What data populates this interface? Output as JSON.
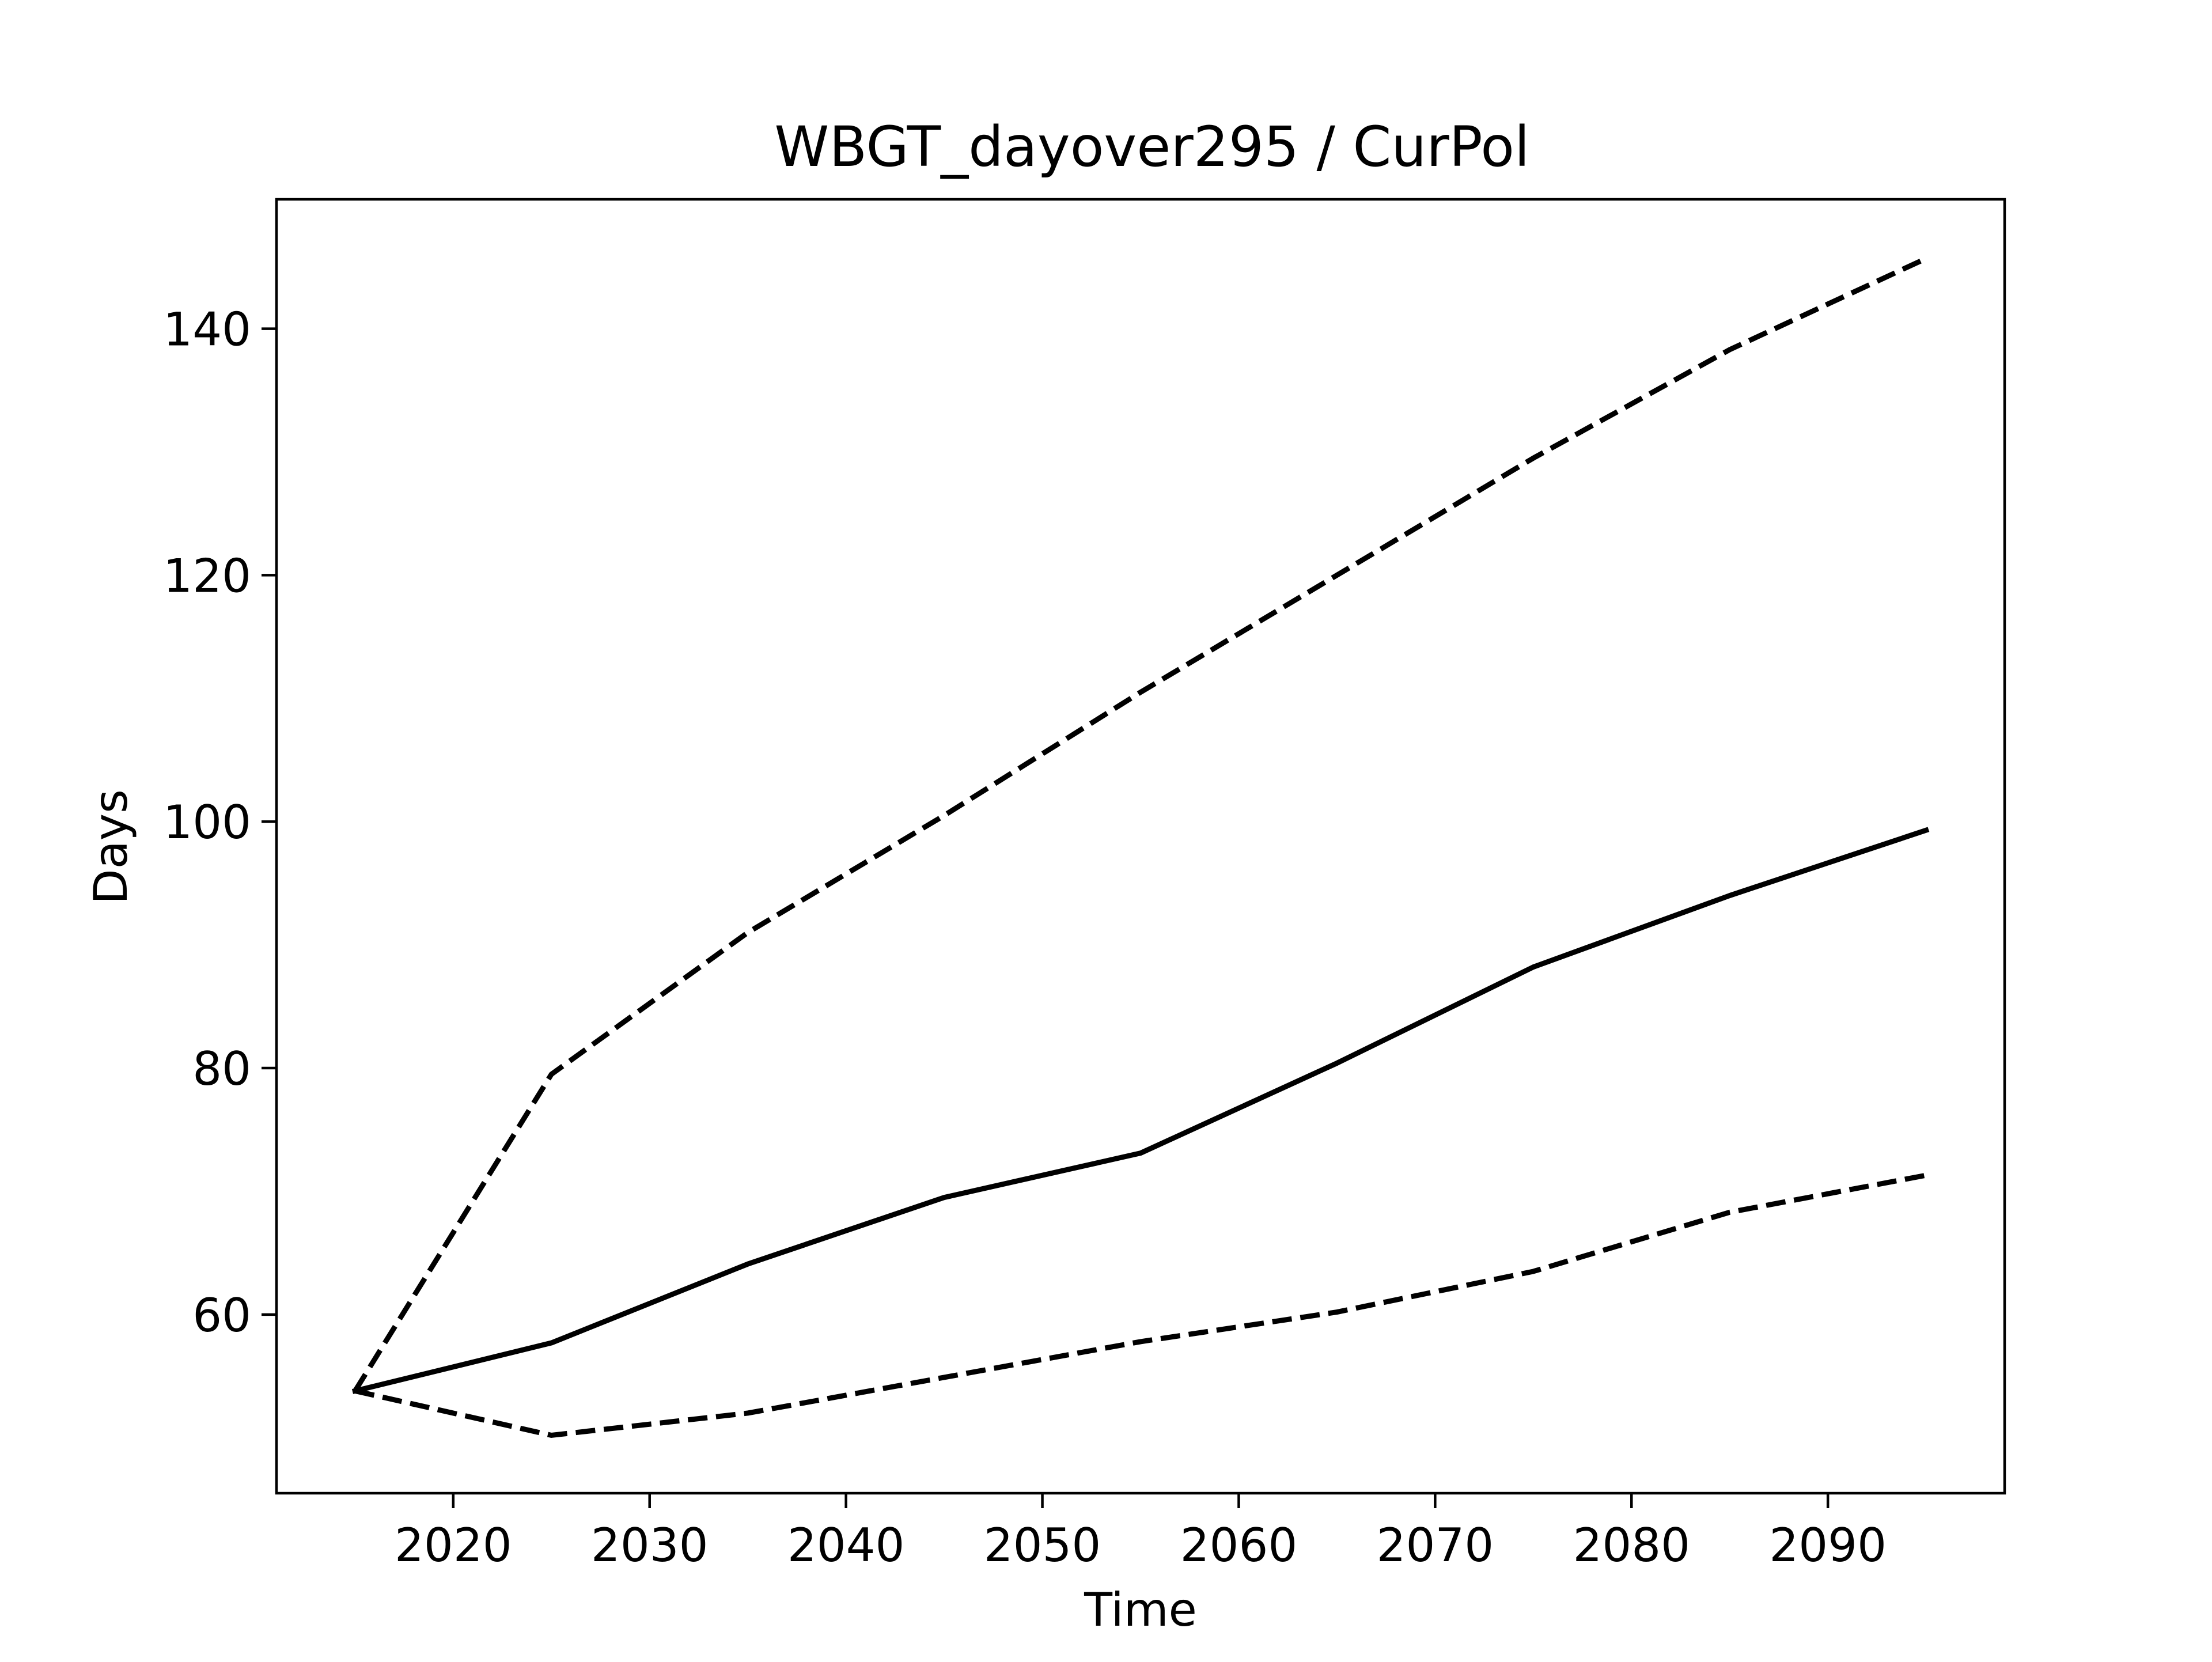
{
  "chart_data": {
    "type": "line",
    "title": "WBGT_dayover295 / CurPol",
    "xlabel": "Time",
    "ylabel": "Days",
    "xlim": [
      2011,
      2099
    ],
    "ylim": [
      45.5,
      150.5
    ],
    "x_ticks": [
      2020,
      2030,
      2040,
      2050,
      2060,
      2070,
      2080,
      2090
    ],
    "y_ticks": [
      60,
      80,
      100,
      120,
      140
    ],
    "x_tick_labels": [
      "2020",
      "2030",
      "2040",
      "2050",
      "2060",
      "2070",
      "2080",
      "2090"
    ],
    "y_tick_labels": [
      "60",
      "80",
      "100",
      "120",
      "140"
    ],
    "grid": false,
    "legend": "none",
    "x": [
      2015,
      2025,
      2035,
      2045,
      2055,
      2065,
      2075,
      2085,
      2095
    ],
    "series": [
      {
        "style": "solid",
        "color": "#000000",
        "values": [
          53.8,
          57.7,
          64.1,
          69.5,
          73.1,
          80.4,
          88.2,
          94.0,
          99.3
        ]
      },
      {
        "style": "dashed",
        "color": "#000000",
        "values": [
          53.8,
          79.5,
          91.0,
          100.5,
          110.5,
          120.0,
          129.5,
          138.3,
          145.7
        ]
      },
      {
        "style": "dashed",
        "color": "#000000",
        "values": [
          53.8,
          50.2,
          52.0,
          54.9,
          57.8,
          60.2,
          63.5,
          68.3,
          71.3
        ]
      }
    ]
  }
}
